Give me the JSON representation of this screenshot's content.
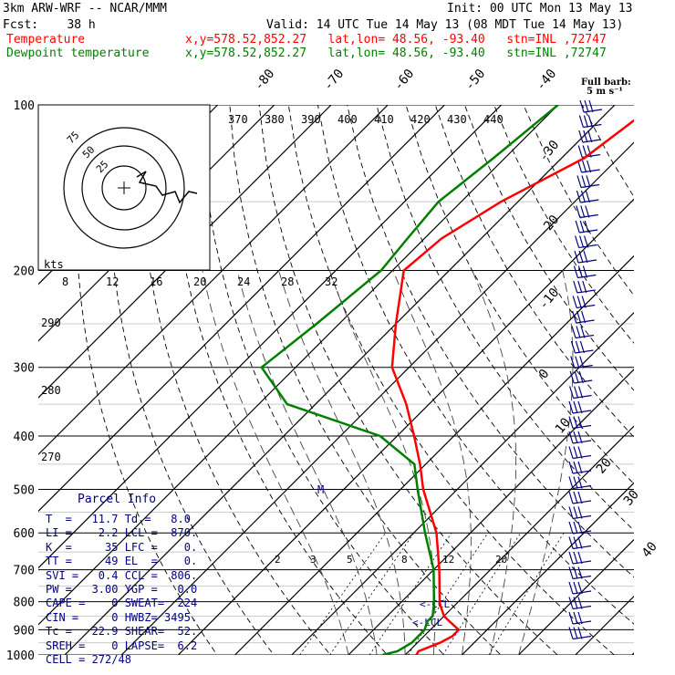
{
  "header": {
    "model": "3km ARW-WRF -- NCAR/MMM",
    "init": "Init: 00 UTC Mon 13 May 13",
    "fcst": "Fcst:    38 h",
    "valid": "Valid: 14 UTC Tue 14 May 13 (08 MDT Tue 14 May 13)",
    "temp_label": "Temperature",
    "dew_label": "Dewpoint temperature",
    "coords": "x,y=578.52,852.27   lat,lon= 48.56, -93.40   stn=INL ,72747"
  },
  "colors": {
    "temperature": "#ff0000",
    "dewpoint": "#008000",
    "parcel": "#000080",
    "grid": "#000000"
  },
  "pressure_labels": [
    "100",
    "200",
    "300",
    "400",
    "500",
    "600",
    "700",
    "800",
    "900",
    "1000"
  ],
  "temp_labels": [
    "-80",
    "-70",
    "-60",
    "-50",
    "-40",
    "-30",
    "-20",
    "-10",
    "0",
    "10",
    "20",
    "30",
    "40"
  ],
  "theta_labels": [
    "290",
    "280",
    "270"
  ],
  "theta_e_labels": [
    "370",
    "380",
    "390",
    "400",
    "410",
    "420",
    "430",
    "440"
  ],
  "hodo": {
    "kts_label": "kts",
    "ring_labels": [
      "75",
      "50",
      "25"
    ],
    "axis_labels": [
      "8",
      "12",
      "16",
      "20",
      "24",
      "28",
      "32"
    ]
  },
  "mixing_labels": [
    "2",
    "3",
    "5",
    "8",
    "12",
    "20"
  ],
  "wind_barb_note": "Full barb:",
  "wind_barb_unit": "5 m s⁻¹",
  "markers": {
    "ccl": "<-CCL",
    "lcl": "<-LCL",
    "m": "M"
  },
  "parcel": {
    "title": "Parcel Info",
    "lines": [
      "T  =   11.7 Td =   8.0",
      "LI =    2.2 LCL =  870.",
      "K  =     35 LFC =    0.",
      "TT =     49 EL  =    0.",
      "SVI =   0.4 CCL =  806.",
      "PW =   3.00 YGP =   0.0",
      "CAPE =    0 SWEAT=  224",
      "CIN =     0 HWBZ= 3495.",
      "Tc =   22.9 SHEAR=  52.",
      "SREH =    0 LAPSE=  6.2",
      "CELL = 272/48"
    ]
  },
  "chart_data": {
    "type": "line",
    "title": "",
    "ylabel": "",
    "xlabel": "",
    "y_scale": "log",
    "ylim": [
      1000,
      100
    ],
    "series": [
      {
        "name": "Temperature",
        "p": [
          1000,
          985,
          950,
          925,
          900,
          870,
          850,
          806,
          700,
          600,
          500,
          450,
          400,
          350,
          300,
          250,
          200,
          175,
          150,
          125,
          100
        ],
        "t": [
          12,
          11.7,
          14,
          15,
          15,
          12,
          10,
          7,
          1,
          -6,
          -16,
          -21,
          -27,
          -34,
          -43,
          -50,
          -58,
          -57,
          -53,
          -46,
          -43
        ]
      },
      {
        "name": "Dewpoint temperature",
        "p": [
          1000,
          985,
          950,
          925,
          900,
          870,
          850,
          806,
          700,
          600,
          500,
          450,
          400,
          350,
          300,
          250,
          200,
          175,
          150,
          125,
          100
        ],
        "t": [
          6,
          8,
          9,
          9,
          9,
          8,
          8,
          6,
          0,
          -8,
          -17,
          -22,
          -33,
          -55,
          -66,
          -64,
          -62,
          -63,
          -64,
          -62,
          -60
        ]
      }
    ]
  }
}
